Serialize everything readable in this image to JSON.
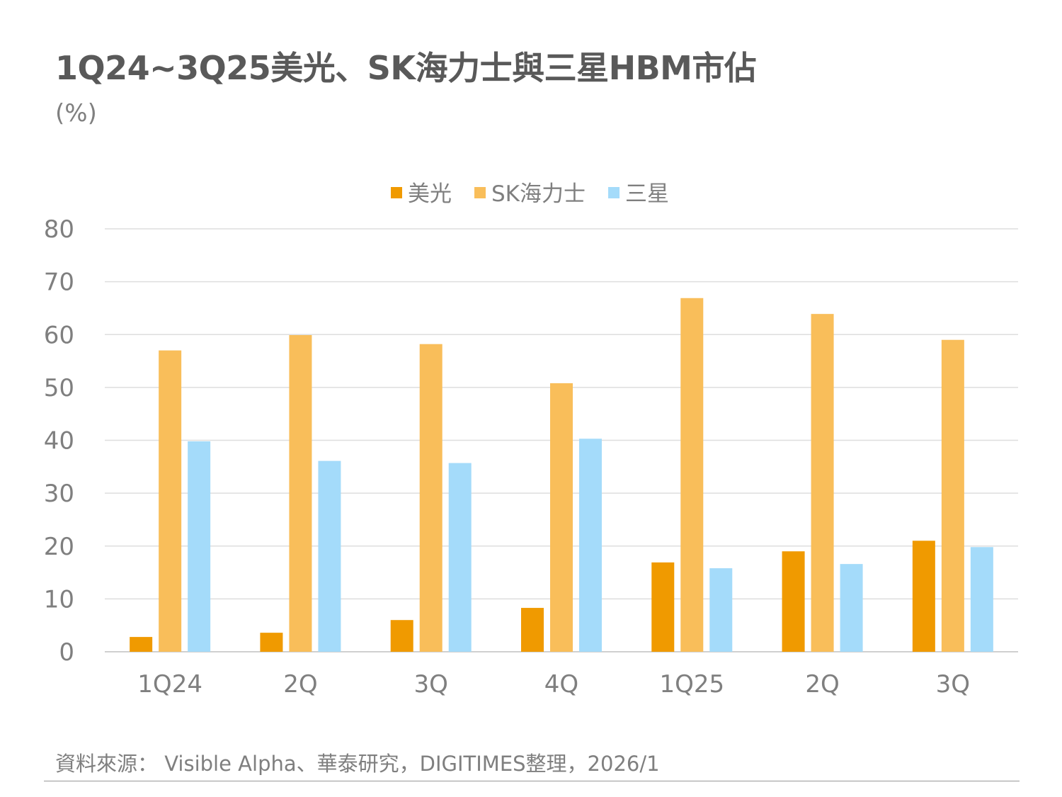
{
  "title": "1Q24~3Q25美光、SK海力士與三星HBM市佔",
  "unit": "(%)",
  "source": "資料來源： Visible Alpha、華泰研究，DIGITIMES整理，2026/1",
  "chart_data": {
    "type": "bar",
    "title": "1Q24~3Q25美光、SK海力士與三星HBM市佔",
    "ylabel": "(%)",
    "xlabel": "",
    "categories": [
      "1Q24",
      "2Q",
      "3Q",
      "4Q",
      "1Q25",
      "2Q",
      "3Q"
    ],
    "series": [
      {
        "name": "美光",
        "color": "#F09A00",
        "values": [
          2.8,
          3.6,
          6.0,
          8.3,
          16.9,
          19.0,
          21.0
        ]
      },
      {
        "name": "SK海力士",
        "color": "#F9BE5A",
        "values": [
          57.0,
          59.9,
          58.2,
          50.8,
          66.9,
          63.9,
          59.0
        ]
      },
      {
        "name": "三星",
        "color": "#A4DBFA",
        "values": [
          39.8,
          36.1,
          35.7,
          40.3,
          15.8,
          16.6,
          19.8
        ]
      }
    ],
    "ylim": [
      0,
      80
    ],
    "yticks": [
      0,
      10,
      20,
      30,
      40,
      50,
      60,
      70,
      80
    ],
    "grid": true,
    "legend": "top-center"
  }
}
